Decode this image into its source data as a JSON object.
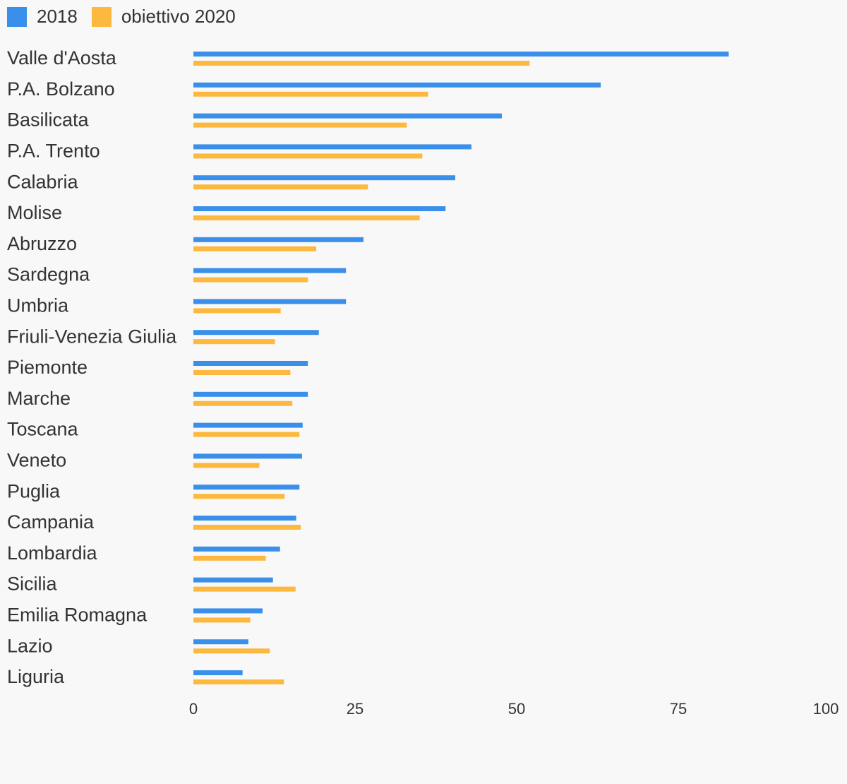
{
  "chart_data": {
    "type": "bar",
    "orientation": "horizontal",
    "categories": [
      "Valle d'Aosta",
      "P.A. Bolzano",
      "Basilicata",
      "P.A. Trento",
      "Calabria",
      "Molise",
      "Abruzzo",
      "Sardegna",
      "Umbria",
      "Friuli-Venezia Giulia",
      "Piemonte",
      "Marche",
      "Toscana",
      "Veneto",
      "Puglia",
      "Campania",
      "Lombardia",
      "Sicilia",
      "Emilia Romagna",
      "Lazio",
      "Liguria"
    ],
    "series": [
      {
        "name": "2018",
        "color": "#3a8fea",
        "values": [
          82.8,
          63.0,
          47.7,
          43.0,
          40.5,
          39.0,
          26.3,
          23.6,
          23.6,
          19.4,
          17.7,
          17.7,
          16.9,
          16.8,
          16.4,
          15.9,
          13.4,
          12.3,
          10.7,
          8.5,
          7.6
        ]
      },
      {
        "name": "obiettivo 2020",
        "color": "#fdb83e",
        "values": [
          52.0,
          36.3,
          33.0,
          35.4,
          27.0,
          35.0,
          19.0,
          17.7,
          13.5,
          12.6,
          15.0,
          15.3,
          16.4,
          10.2,
          14.1,
          16.6,
          11.2,
          15.8,
          8.8,
          11.8,
          14.0
        ]
      }
    ],
    "xlim": [
      0,
      100
    ],
    "xticks": [
      "0",
      "25",
      "50",
      "75",
      "100"
    ],
    "title": "",
    "xlabel": "",
    "ylabel": "",
    "legend_position": "top-left",
    "grid": false
  }
}
